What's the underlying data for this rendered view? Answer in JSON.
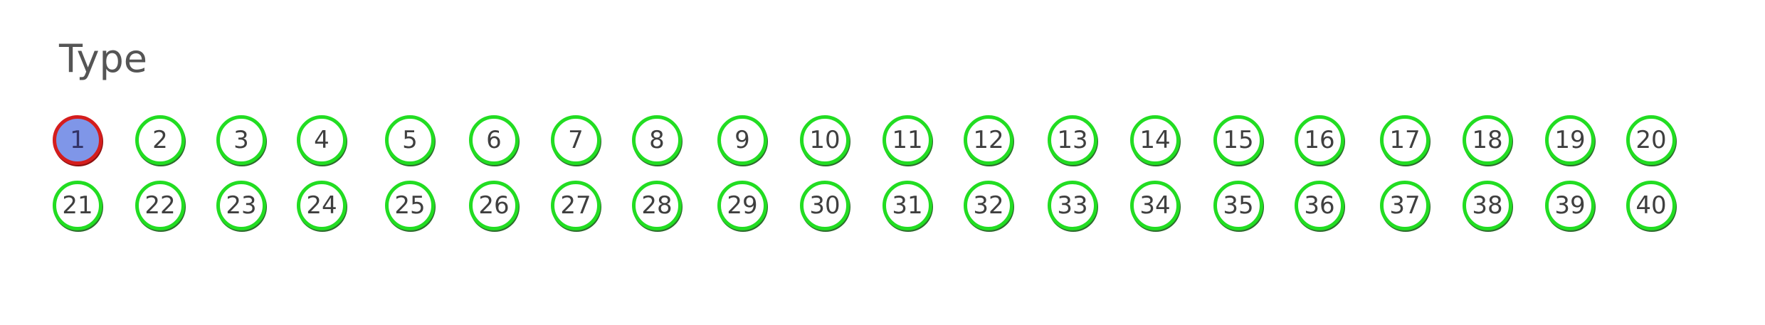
{
  "title": "Type",
  "selected": "1",
  "numbers": [
    "1",
    "2",
    "3",
    "4",
    "5",
    "6",
    "7",
    "8",
    "9",
    "10",
    "11",
    "12",
    "13",
    "14",
    "15",
    "16",
    "17",
    "18",
    "19",
    "20",
    "21",
    "22",
    "23",
    "24",
    "25",
    "26",
    "27",
    "28",
    "29",
    "30",
    "31",
    "32",
    "33",
    "34",
    "35",
    "36",
    "37",
    "38",
    "39",
    "40"
  ],
  "colors": {
    "ring": "#22dd22",
    "selected_ring": "#d41d1d",
    "selected_fill": "#7f96e8",
    "text": "#3f3f3f",
    "title": "#555555"
  }
}
